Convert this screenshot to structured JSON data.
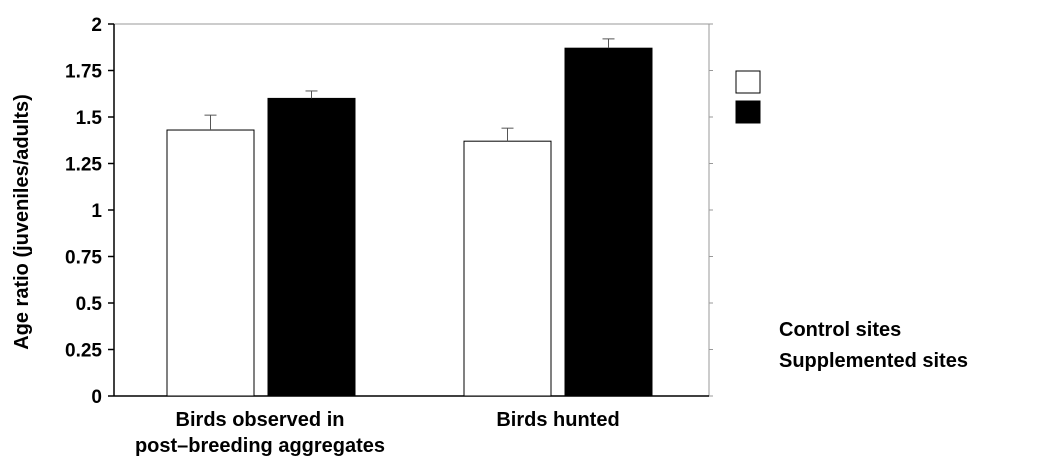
{
  "chart_data": {
    "type": "bar",
    "title": "",
    "xlabel": "",
    "ylabel": "Age ratio (juveniles/adults)",
    "ylim": [
      0,
      2
    ],
    "yticks": [
      "0",
      "0.25",
      "0.5",
      "0.75",
      "1",
      "1.25",
      "1.5",
      "1.75",
      "2"
    ],
    "categories": [
      [
        "Birds observed in",
        "post–breeding aggregates"
      ],
      [
        "Birds hunted"
      ]
    ],
    "series": [
      {
        "name": "Control sites",
        "color": "#ffffff",
        "values": [
          1.43,
          1.37
        ],
        "errors": [
          0.08,
          0.07
        ]
      },
      {
        "name": "Supplemented sites",
        "color": "#000000",
        "values": [
          1.6,
          1.87
        ],
        "errors": [
          0.04,
          0.05
        ]
      }
    ],
    "grid": false,
    "legend_position": "right"
  }
}
